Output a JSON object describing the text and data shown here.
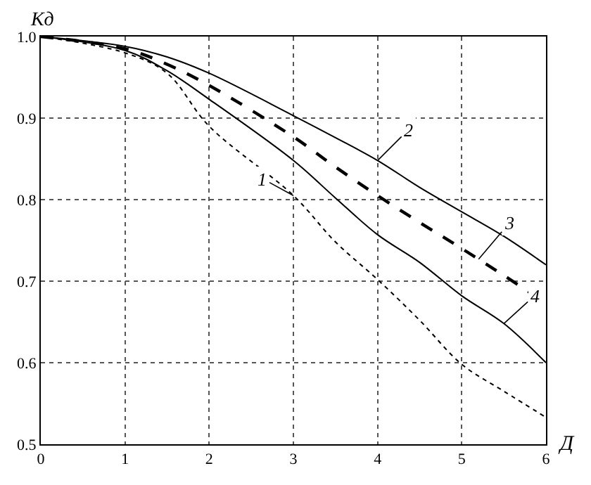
{
  "chart_data": {
    "type": "line",
    "xlabel": "Д",
    "ylabel": "Кд",
    "x": [
      0,
      1,
      1.5,
      2,
      3,
      3.5,
      4,
      4.5,
      5,
      5.5,
      6
    ],
    "series": [
      {
        "color": "#000000",
        "line_style": "dotted",
        "values": [
          1.0,
          0.98,
          0.955,
          0.89,
          0.805,
          0.748,
          0.702,
          0.652,
          0.598,
          0.565,
          0.533
        ]
      },
      {
        "color": "#000000",
        "line_style": "solid",
        "values": [
          1.0,
          0.988,
          0.975,
          0.955,
          0.903,
          0.876,
          0.848,
          0.815,
          0.785,
          0.755,
          0.72
        ]
      },
      {
        "color": "#000000",
        "line_style": "dashed",
        "values": [
          1.0,
          0.985,
          0.966,
          0.94,
          0.877,
          0.84,
          0.805,
          0.772,
          0.74,
          0.707,
          0.673
        ]
      },
      {
        "color": "#000000",
        "line_style": "solid",
        "values": [
          1.0,
          0.983,
          0.958,
          0.923,
          0.848,
          0.802,
          0.757,
          0.723,
          0.682,
          0.648,
          0.6
        ]
      }
    ],
    "annotations": [
      {
        "text": "1",
        "x": 3.0,
        "y": 0.805
      },
      {
        "text": "2",
        "x": 4.0,
        "y": 0.848
      },
      {
        "text": "3",
        "x": 5.2,
        "y": 0.727
      },
      {
        "text": "4",
        "x": 5.5,
        "y": 0.648
      }
    ],
    "xlim": [
      0,
      6
    ],
    "xticks": [
      0,
      1,
      2,
      3,
      4,
      5,
      6
    ],
    "ylim": [
      0.5,
      1.0
    ],
    "yticks": [
      {
        "value": 0.5,
        "label": "0.5"
      },
      {
        "value": 0.6,
        "label": "0.6"
      },
      {
        "value": 0.7,
        "label": "0.7"
      },
      {
        "value": 0.8,
        "label": "0.8"
      },
      {
        "value": 0.9,
        "label": "0.9"
      },
      {
        "value": 1.0,
        "label": "1.0"
      }
    ],
    "grid": true,
    "marker": "none"
  }
}
